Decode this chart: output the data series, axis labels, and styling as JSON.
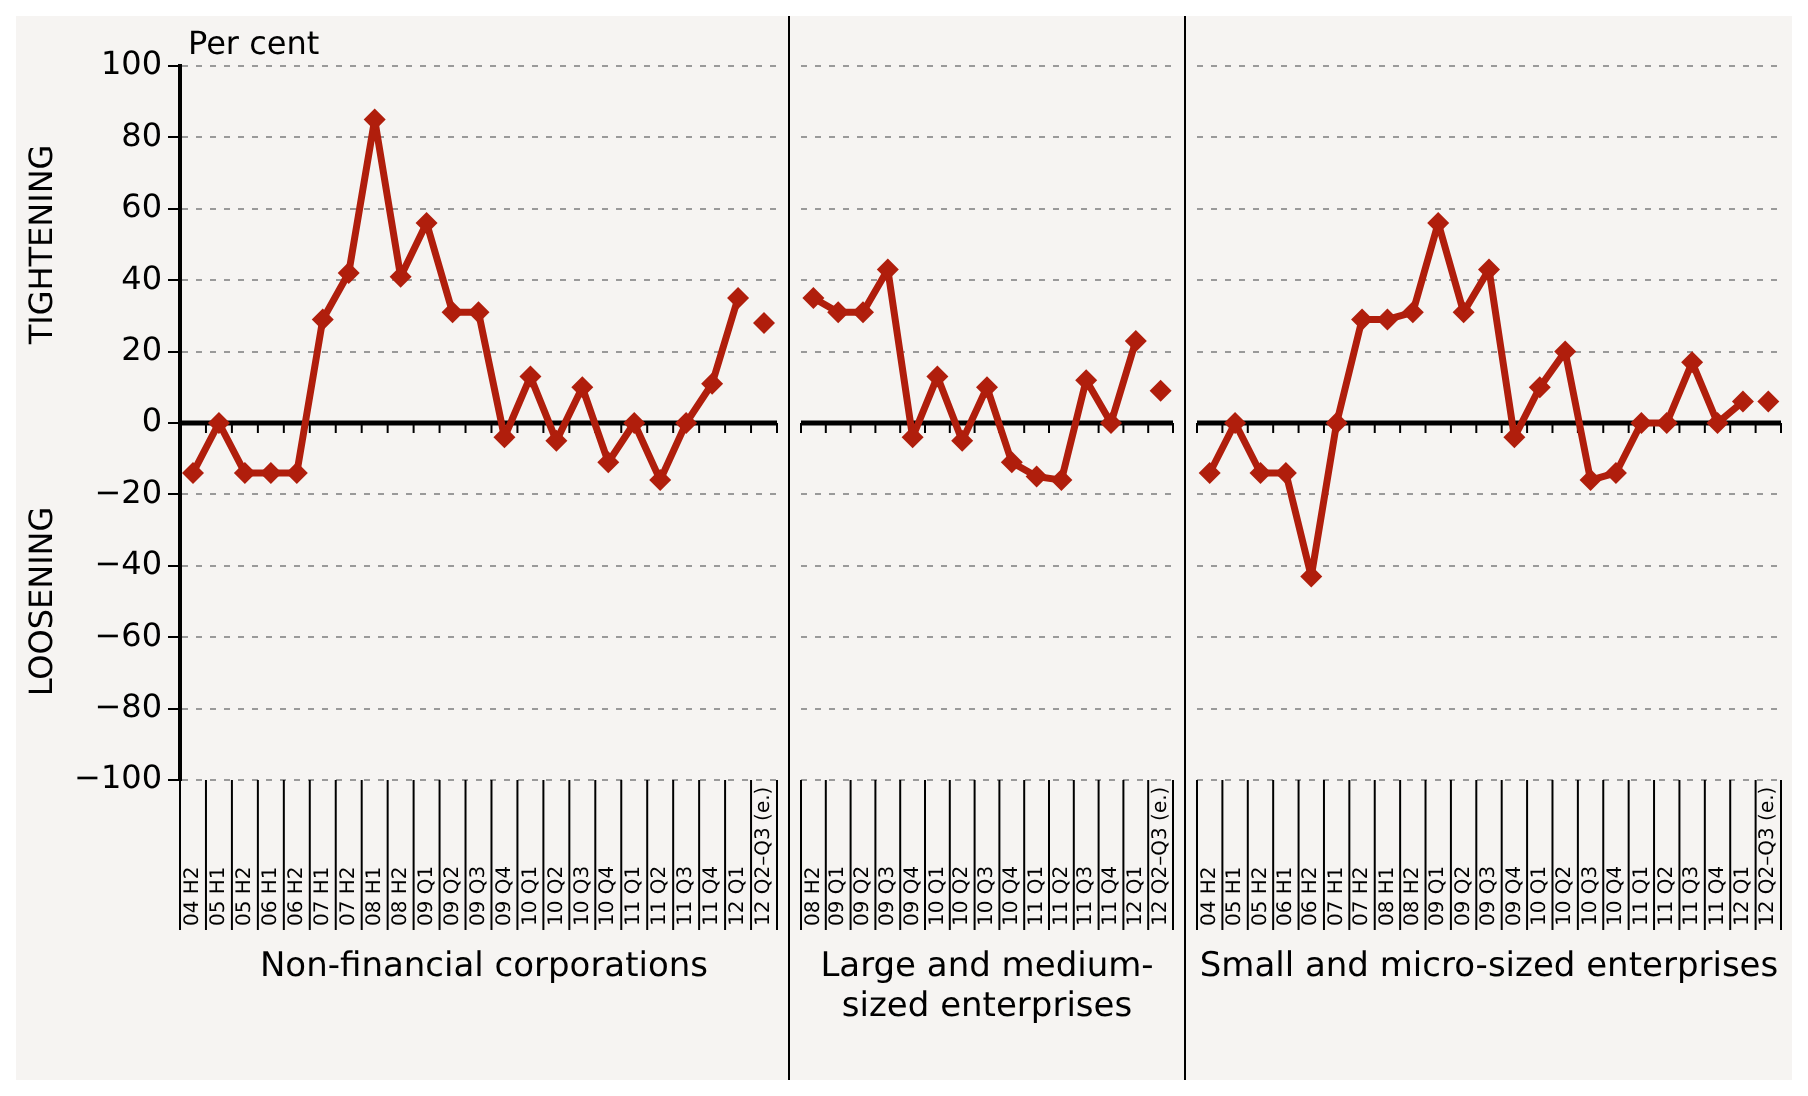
{
  "chart_data": [
    {
      "type": "line",
      "ylabel": "Per cent",
      "xlabel": "Non-financial corporations",
      "annotations": [
        "TIGHTENING",
        "LOOSENING"
      ],
      "categories": [
        "04 H2",
        "05 H1",
        "05 H2",
        "06 H1",
        "06 H2",
        "07 H1",
        "07 H2",
        "08 H1",
        "08 H2",
        "09 Q1",
        "09 Q2",
        "09 Q3",
        "09 Q4",
        "10 Q1",
        "10 Q2",
        "10 Q3",
        "10 Q4",
        "11 Q1",
        "11 Q2",
        "11 Q3",
        "11 Q4",
        "12 Q1",
        "12 Q2–Q3 (e.)"
      ],
      "series": [
        {
          "color": "#b01e0c",
          "values": [
            -14,
            0,
            -14,
            -14,
            -14,
            29,
            42,
            85,
            41,
            56,
            31,
            31,
            -4,
            13,
            -5,
            10,
            -11,
            0,
            -16,
            0,
            11,
            35,
            null
          ]
        },
        {
          "type": "scatter",
          "color": "#b01e0c",
          "values": [
            null,
            null,
            null,
            null,
            null,
            null,
            null,
            null,
            null,
            null,
            null,
            null,
            null,
            null,
            null,
            null,
            null,
            null,
            null,
            null,
            null,
            null,
            28
          ]
        }
      ],
      "ylim": [
        -100,
        100
      ],
      "yticks": [
        {
          "value": -100,
          "label": "−100"
        },
        {
          "value": -80,
          "label": "−80"
        },
        {
          "value": -60,
          "label": "−60"
        },
        {
          "value": -40,
          "label": "−40"
        },
        {
          "value": -20,
          "label": "−20"
        },
        0,
        20,
        40,
        60,
        80,
        100
      ],
      "grid": "y",
      "legend": false,
      "marker": "diamond",
      "line_style": "solid"
    },
    {
      "type": "line",
      "xlabel": "Large and medium-sized enterprises",
      "categories": [
        "08 H2",
        "09 Q1",
        "09 Q2",
        "09 Q3",
        "09 Q4",
        "10 Q1",
        "10 Q2",
        "10 Q3",
        "10 Q4",
        "11 Q1",
        "11 Q2",
        "11 Q3",
        "11 Q4",
        "12 Q1",
        "12 Q2–Q3 (e.)"
      ],
      "series": [
        {
          "color": "#b01e0c",
          "values": [
            35,
            31,
            31,
            43,
            -4,
            13,
            -5,
            10,
            -11,
            -15,
            -16,
            12,
            0,
            23,
            null
          ]
        },
        {
          "type": "scatter",
          "color": "#b01e0c",
          "values": [
            null,
            null,
            null,
            null,
            null,
            null,
            null,
            null,
            null,
            null,
            null,
            null,
            null,
            null,
            9
          ]
        }
      ],
      "ylim": [
        -100,
        100
      ],
      "yticks": [
        -100,
        -80,
        -60,
        -40,
        -20,
        0,
        20,
        40,
        60,
        80,
        100
      ],
      "tick_labels": "x",
      "grid": "y",
      "legend": false,
      "marker": "diamond",
      "line_style": "solid"
    },
    {
      "type": "line",
      "xlabel": "Small and micro-sized enterprises",
      "categories": [
        "04 H2",
        "05 H1",
        "05 H2",
        "06 H1",
        "06 H2",
        "07 H1",
        "07 H2",
        "08 H1",
        "08 H2",
        "09 Q1",
        "09 Q2",
        "09 Q3",
        "09 Q4",
        "10 Q1",
        "10 Q2",
        "10 Q3",
        "10 Q4",
        "11 Q1",
        "11 Q2",
        "11 Q3",
        "11 Q4",
        "12 Q1",
        "12 Q2–Q3 (e.)"
      ],
      "series": [
        {
          "color": "#b01e0c",
          "values": [
            -14,
            0,
            -14,
            -14,
            -43,
            0,
            29,
            29,
            31,
            56,
            31,
            43,
            -4,
            10,
            20,
            -16,
            -14,
            0,
            0,
            17,
            0,
            6,
            null
          ]
        },
        {
          "type": "scatter",
          "color": "#b01e0c",
          "values": [
            null,
            null,
            null,
            null,
            null,
            null,
            null,
            null,
            null,
            null,
            null,
            null,
            null,
            null,
            null,
            null,
            null,
            null,
            null,
            null,
            null,
            null,
            6
          ]
        }
      ],
      "ylim": [
        -100,
        100
      ],
      "yticks": [
        -100,
        -80,
        -60,
        -40,
        -20,
        0,
        20,
        40,
        60,
        80,
        100
      ],
      "tick_labels": "x",
      "grid": "y",
      "legend": false,
      "marker": "diamond",
      "line_style": "solid"
    }
  ]
}
